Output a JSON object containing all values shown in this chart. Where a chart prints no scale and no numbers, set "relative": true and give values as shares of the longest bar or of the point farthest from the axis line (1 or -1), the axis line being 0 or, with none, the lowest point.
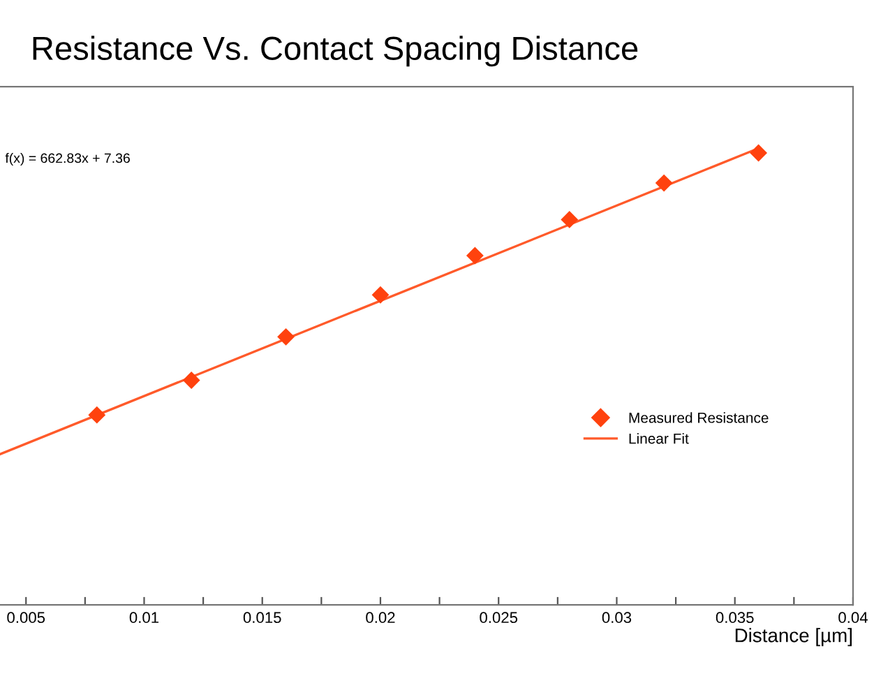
{
  "chart_data": {
    "type": "scatter",
    "title": "Resistance Vs. Contact Spacing Distance",
    "xlabel": "Distance [µm]",
    "relative": true,
    "annotations": [
      "f(x) = 662.83x + 7.36"
    ],
    "series": [
      {
        "name": "Measured Resistance",
        "color": "#ff420e",
        "marker": "diamond",
        "x": [
          0.008,
          0.012,
          0.016,
          0.02,
          0.024,
          0.028,
          0.032,
          0.036
        ],
        "values": [
          0.416,
          0.492,
          0.587,
          0.679,
          0.765,
          0.844,
          0.924,
          0.99
        ]
      },
      {
        "name": "Linear Fit",
        "type": "line",
        "color": "#ff5a2a",
        "marker": "none",
        "line_style": "solid",
        "x": [
          0.0039,
          0.036
        ],
        "values": [
          0.33,
          1.0
        ]
      }
    ],
    "xlim": [
      0.0039,
      0.04
    ],
    "xticks": [
      0.005,
      {
        "value": 0.0075,
        "label": null
      },
      0.01,
      {
        "value": 0.0125,
        "label": null
      },
      0.015,
      {
        "value": 0.0175,
        "label": null
      },
      0.02,
      {
        "value": 0.0225,
        "label": null
      },
      0.025,
      {
        "value": 0.0275,
        "label": null
      },
      0.03,
      {
        "value": 0.0325,
        "label": null
      },
      0.035,
      {
        "value": 0.0375,
        "label": null
      },
      0.04
    ],
    "tick_labels": "x",
    "grid": false,
    "legend": "right"
  }
}
